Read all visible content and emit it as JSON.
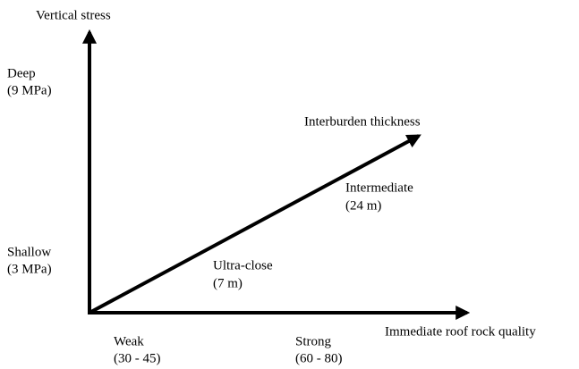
{
  "axes": {
    "vertical": {
      "label": "Vertical stress",
      "levels": [
        {
          "label": "Deep",
          "detail": "(9 MPa)"
        },
        {
          "label": "Shallow",
          "detail": "(3 MPa)"
        }
      ]
    },
    "diagonal": {
      "label": "Interburden thickness",
      "levels": [
        {
          "label": "Ultra-close",
          "detail": "(7 m)"
        },
        {
          "label": "Intermediate",
          "detail": "(24 m)"
        }
      ]
    },
    "horizontal": {
      "label": "Immediate roof rock quality",
      "levels": [
        {
          "label": "Weak",
          "detail": "(30 - 45)"
        },
        {
          "label": "Strong",
          "detail": "(60 - 80)"
        }
      ]
    }
  }
}
